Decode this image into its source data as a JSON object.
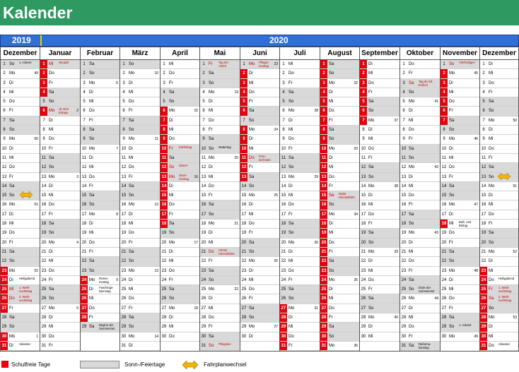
{
  "title": "Kalender",
  "years": {
    "left": "2019",
    "right": "2020"
  },
  "legend": {
    "schulfrei": "Schulfreie Tage",
    "sonn": "Sonn-/Feiertage",
    "fahrplan": "Fahrplanwechsel"
  },
  "colors": {
    "green": "#2e9a62",
    "blue": "#2f6fd6",
    "red": "#e8000b",
    "grey": "#d9d9d9",
    "arrow": "#f4b400"
  },
  "icons": [
    "double-arrow-icon"
  ],
  "months": [
    {
      "name": "Dezember",
      "year": 2019,
      "month": 12
    },
    {
      "name": "Januar",
      "year": 2020,
      "month": 1
    },
    {
      "name": "Februar",
      "year": 2020,
      "month": 2
    },
    {
      "name": "März",
      "year": 2020,
      "month": 3
    },
    {
      "name": "April",
      "year": 2020,
      "month": 4
    },
    {
      "name": "Mai",
      "year": 2020,
      "month": 5
    },
    {
      "name": "Juni",
      "year": 2020,
      "month": 6
    },
    {
      "name": "Juli",
      "year": 2020,
      "month": 7
    },
    {
      "name": "August",
      "year": 2020,
      "month": 8
    },
    {
      "name": "September",
      "year": 2020,
      "month": 9
    },
    {
      "name": "Oktober",
      "year": 2020,
      "month": 10
    },
    {
      "name": "November",
      "year": 2020,
      "month": 11
    },
    {
      "name": "Dezember",
      "year": 2020,
      "month": 12
    }
  ],
  "holidays": {
    "0": {
      "1": [
        "1. Advent",
        "blk"
      ],
      "24": [
        "Heiligabend",
        "blk"
      ],
      "25": [
        "1. Weih-nachtstag",
        "red"
      ],
      "26": [
        "2. Weih-nachtstag",
        "red"
      ],
      "31": [
        "Silvester",
        "blk"
      ]
    },
    "1": {
      "1": [
        "Neujahr",
        "red"
      ],
      "6": [
        "Hl. Drei Könige",
        "red"
      ]
    },
    "2": {
      "24": [
        "Rosen-montag",
        "blk"
      ],
      "25": [
        "Faschings-Dienstag",
        "blk"
      ],
      "29": [
        "Beginn der Sommerzeit",
        "blk"
      ]
    },
    "4": {
      "10": [
        "Karfreitag",
        "red"
      ],
      "12": [
        "Ostern",
        "red"
      ],
      "13": [
        "Oster-montag",
        "red"
      ]
    },
    "5": {
      "1": [
        "Tag der Arbeit",
        "red"
      ],
      "10": [
        "Muttertag",
        "blk"
      ],
      "21": [
        "Christi Himmelfahrt",
        "red"
      ],
      "31": [
        "Pfingsten",
        "red"
      ]
    },
    "6": {
      "1": [
        "Pfingst-montag",
        "red"
      ],
      "11": [
        "Fron-leichnam",
        "red"
      ]
    },
    "8": {
      "15": [
        "Mariä Himmelfahrt",
        "red"
      ]
    },
    "10": {
      "3": [
        "Tag der Dt. Einheit",
        "red"
      ],
      "25": [
        "Ende der Sommerzeit",
        "blk"
      ],
      "31": [
        "Reforma-tionstag",
        "blk"
      ]
    },
    "11": {
      "1": [
        "Allerheiligen",
        "red"
      ],
      "18": [
        "Buß- und Bettag",
        "blk"
      ]
    },
    "12": {
      "24": [
        "Heiligabend",
        "blk"
      ],
      "25": [
        "1. Weih-nachtstag",
        "red"
      ],
      "26": [
        "2. Weih-nachtstag",
        "red"
      ],
      "31": [
        "Silvester",
        "blk"
      ],
      "29": [
        "",
        "blk"
      ]
    }
  },
  "school_free": {
    "0": [
      23,
      24,
      25,
      26,
      27,
      30,
      31
    ],
    "1": [
      1,
      2,
      3,
      4,
      6
    ],
    "2": [
      24,
      25,
      26,
      27,
      28
    ],
    "3": [],
    "4": [
      6,
      7,
      8,
      9,
      10,
      11,
      12,
      13,
      14,
      15,
      16,
      17,
      18
    ],
    "5": [],
    "6": [
      2,
      3,
      4,
      5,
      6,
      8,
      9,
      10,
      11,
      12,
      13
    ],
    "7": [
      27,
      28,
      29,
      30,
      31
    ],
    "8": [
      1,
      2,
      3,
      4,
      5,
      6,
      7,
      8,
      9,
      10,
      11,
      12,
      13,
      14,
      15,
      16,
      17,
      18,
      19,
      20,
      21,
      22,
      23,
      24,
      25,
      26,
      27,
      28,
      29,
      30,
      31
    ],
    "9": [
      1,
      2,
      3,
      4,
      5,
      6,
      7
    ],
    "10": [],
    "11": [
      2,
      3,
      4,
      5,
      6,
      7,
      18
    ],
    "12": [
      23,
      24,
      25,
      26,
      27,
      28,
      29,
      30,
      31
    ]
  },
  "advent": {
    "11": {
      "29": "1. Advent"
    }
  },
  "weekday_abbr": [
    "So",
    "Mo",
    "Di",
    "Mi",
    "Do",
    "Fr",
    "Sa"
  ]
}
